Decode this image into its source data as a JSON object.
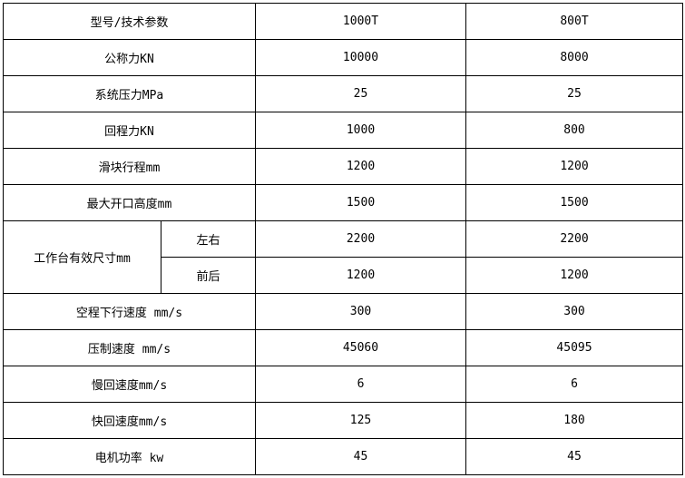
{
  "rows": [
    {
      "label": "型号/技术参数",
      "v1": "1000T",
      "v2": "800T"
    },
    {
      "label": "公称力KN",
      "v1": "10000",
      "v2": "8000"
    },
    {
      "label": "系统压力MPa",
      "v1": "25",
      "v2": "25"
    },
    {
      "label": "回程力KN",
      "v1": "1000",
      "v2": "800"
    },
    {
      "label": "滑块行程mm",
      "v1": "1200",
      "v2": "1200"
    },
    {
      "label": "最大开口高度mm",
      "v1": "1500",
      "v2": "1500"
    },
    {
      "label": "工作台有效尺寸mm",
      "sub": "左右",
      "v1": "2200",
      "v2": "2200"
    },
    {
      "sub": "前后",
      "v1": "1200",
      "v2": "1200"
    },
    {
      "label": "空程下行速度 mm/s",
      "v1": "300",
      "v2": "300"
    },
    {
      "label": "压制速度 mm/s",
      "v1": "45060",
      "v2": "45095"
    },
    {
      "label": "慢回速度mm/s",
      "v1": "6",
      "v2": "6"
    },
    {
      "label": "快回速度mm/s",
      "v1": "125",
      "v2": "180"
    },
    {
      "label": "电机功率 kw",
      "v1": "45",
      "v2": "45"
    }
  ]
}
